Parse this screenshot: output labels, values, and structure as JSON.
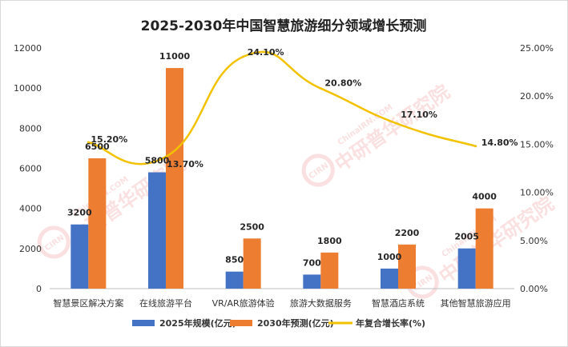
{
  "chart_data": {
    "type": "bar",
    "title": "2025-2030年中国智慧旅游细分领域增长预测",
    "categories": [
      "智慧景区解决方案",
      "在线旅游平台",
      "VR/AR旅游体验",
      "旅游大数据服务",
      "智慧酒店系统",
      "其他智慧旅游应用"
    ],
    "series": [
      {
        "name": "2025年规模(亿元)",
        "type": "bar",
        "axis": "left",
        "color": "#4472c4",
        "values": [
          3200,
          5800,
          850,
          700,
          1000,
          2005
        ],
        "labels": [
          "3200",
          "5800",
          "850",
          "700",
          "1000",
          "2005"
        ]
      },
      {
        "name": "2030年预测(亿元)",
        "type": "bar",
        "axis": "left",
        "color": "#ed7d31",
        "values": [
          6500,
          11000,
          2500,
          1800,
          2200,
          4000
        ],
        "labels": [
          "6500",
          "11000",
          "2500",
          "1800",
          "2200",
          "4000"
        ]
      },
      {
        "name": "年复合增长率(%)",
        "type": "line",
        "axis": "right",
        "color": "#f2c200",
        "values": [
          15.2,
          13.7,
          24.1,
          20.8,
          17.1,
          14.8
        ],
        "labels": [
          "15.20%",
          "13.70%",
          "24.10%",
          "20.80%",
          "17.10%",
          "14.80%"
        ]
      }
    ],
    "ylim": [
      0,
      12000
    ],
    "yticks": [
      "0",
      "2000",
      "4000",
      "6000",
      "8000",
      "10000",
      "12000"
    ],
    "y2lim": [
      0,
      25
    ],
    "y2ticks": [
      "0.00%",
      "5.00%",
      "10.00%",
      "15.00%",
      "20.00%",
      "25.00%"
    ],
    "legend": "bottom",
    "grid": false
  },
  "watermark": {
    "brand": "中研普华研究院",
    "site": "ChinaIRN.COM",
    "logo": "CIRN"
  }
}
